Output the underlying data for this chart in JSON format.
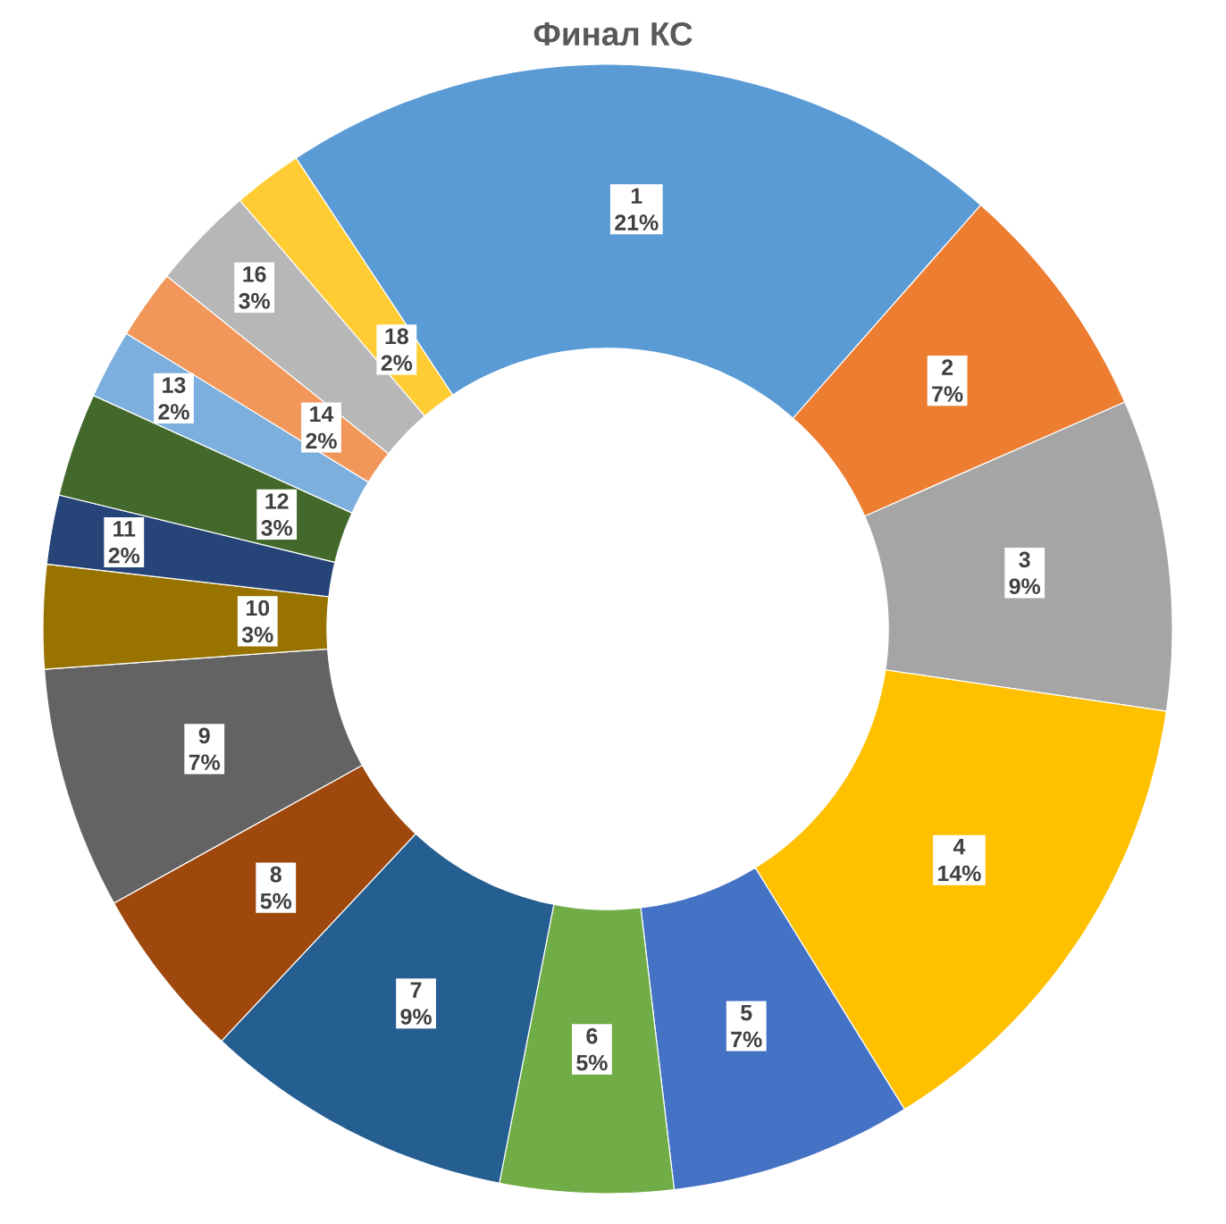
{
  "chart_data": {
    "type": "donut",
    "title": "Финал КС",
    "categories": [
      "1",
      "2",
      "3",
      "4",
      "5",
      "6",
      "7",
      "8",
      "9",
      "10",
      "11",
      "12",
      "13",
      "14",
      "16",
      "18"
    ],
    "values": [
      21,
      7,
      9,
      14,
      7,
      5,
      9,
      5,
      7,
      3,
      2,
      3,
      2,
      2,
      3,
      2
    ],
    "value_labels": [
      "21%",
      "7%",
      "9%",
      "14%",
      "7%",
      "5%",
      "9%",
      "5%",
      "7%",
      "3%",
      "2%",
      "3%",
      "2%",
      "2%",
      "3%",
      "2%"
    ],
    "colors": [
      "#5b9bd5",
      "#ed7d31",
      "#a5a5a5",
      "#ffc000",
      "#4472c4",
      "#70ad47",
      "#255e91",
      "#9e480e",
      "#636363",
      "#997300",
      "#264478",
      "#43682b",
      "#7cafdd",
      "#f1975a",
      "#b7b7b7",
      "#ffcd33"
    ]
  }
}
